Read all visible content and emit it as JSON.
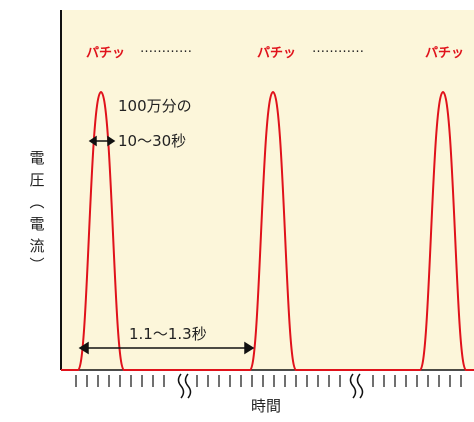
{
  "labels": {
    "snap": "パチッ",
    "dots": "…………",
    "pulse_width": [
      "100万分の",
      "10〜30秒"
    ],
    "interval": "1.1〜1.3秒",
    "x_axis": "時間",
    "y_axis": [
      "電",
      "圧",
      "︵",
      "電",
      "流",
      "︶"
    ]
  },
  "colors": {
    "background": "#fcf6da",
    "pulse": "#e0121b",
    "snap_text": "#e0121b",
    "axis": "#111111",
    "text": "#222222"
  }
}
